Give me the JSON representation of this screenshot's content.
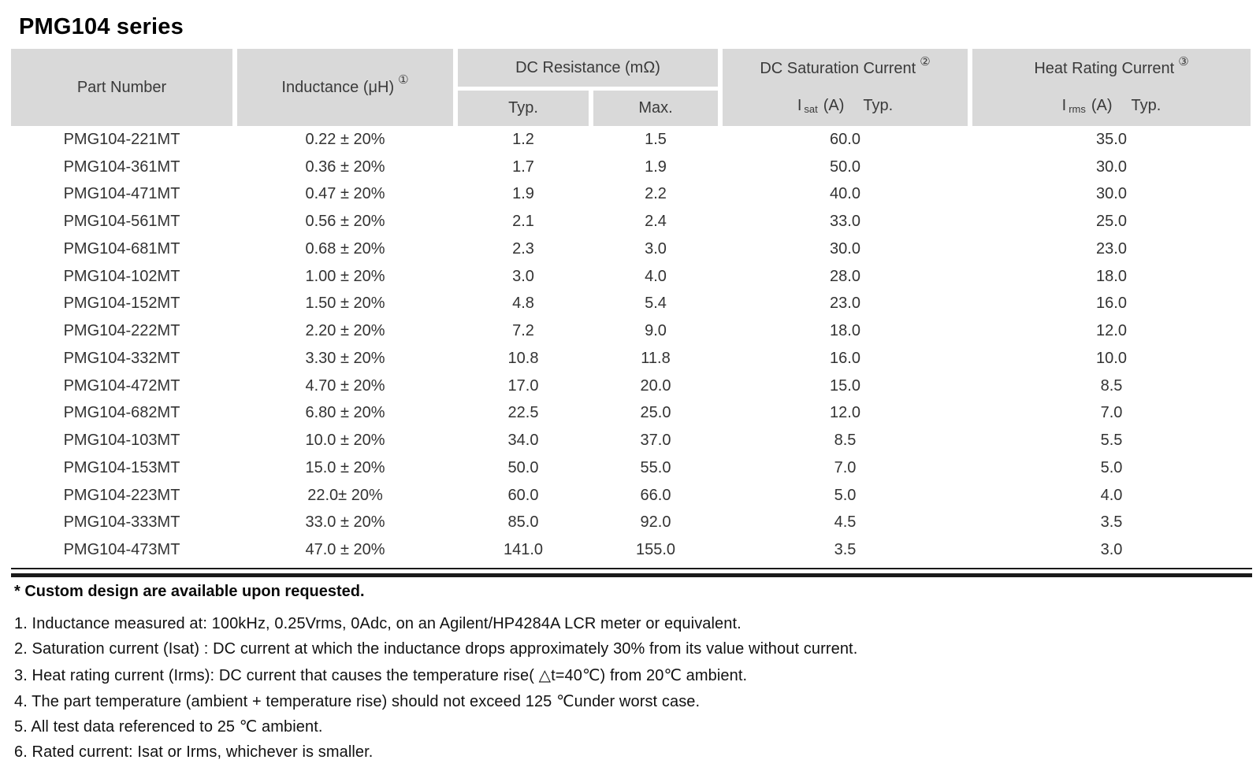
{
  "page_title": "PMG104 series",
  "colors": {
    "header_bg": "#d9d9d9",
    "rule": "#1a1a1a",
    "text": "#333333"
  },
  "table": {
    "header": {
      "part_number": "Part Number",
      "inductance": {
        "label": "Inductance (μH)",
        "sup": "①"
      },
      "dc_resistance": "DC Resistance (mΩ)",
      "typ": "Typ.",
      "max": "Max.",
      "dc_saturation": {
        "label": "DC Saturation Current",
        "sup": "②",
        "i": "I",
        "sub": "sat",
        "unit": "(A)",
        "typ": "Typ."
      },
      "heat_rating": {
        "label": "Heat Rating Current",
        "sup": "③",
        "i": "I",
        "sub": "rms",
        "unit": "(A)",
        "typ": "Typ."
      }
    },
    "rows": [
      {
        "part": "PMG104-221MT",
        "inductance": "0.22 ± 20%",
        "dcr_typ": "1.2",
        "dcr_max": "1.5",
        "isat": "60.0",
        "irms": "35.0"
      },
      {
        "part": "PMG104-361MT",
        "inductance": "0.36 ± 20%",
        "dcr_typ": "1.7",
        "dcr_max": "1.9",
        "isat": "50.0",
        "irms": "30.0"
      },
      {
        "part": "PMG104-471MT",
        "inductance": "0.47 ± 20%",
        "dcr_typ": "1.9",
        "dcr_max": "2.2",
        "isat": "40.0",
        "irms": "30.0"
      },
      {
        "part": "PMG104-561MT",
        "inductance": "0.56 ± 20%",
        "dcr_typ": "2.1",
        "dcr_max": "2.4",
        "isat": "33.0",
        "irms": "25.0"
      },
      {
        "part": "PMG104-681MT",
        "inductance": "0.68 ± 20%",
        "dcr_typ": "2.3",
        "dcr_max": "3.0",
        "isat": "30.0",
        "irms": "23.0"
      },
      {
        "part": "PMG104-102MT",
        "inductance": "1.00 ± 20%",
        "dcr_typ": "3.0",
        "dcr_max": "4.0",
        "isat": "28.0",
        "irms": "18.0"
      },
      {
        "part": "PMG104-152MT",
        "inductance": "1.50 ± 20%",
        "dcr_typ": "4.8",
        "dcr_max": "5.4",
        "isat": "23.0",
        "irms": "16.0"
      },
      {
        "part": "PMG104-222MT",
        "inductance": "2.20 ± 20%",
        "dcr_typ": "7.2",
        "dcr_max": "9.0",
        "isat": "18.0",
        "irms": "12.0"
      },
      {
        "part": "PMG104-332MT",
        "inductance": "3.30 ± 20%",
        "dcr_typ": "10.8",
        "dcr_max": "11.8",
        "isat": "16.0",
        "irms": "10.0"
      },
      {
        "part": "PMG104-472MT",
        "inductance": "4.70 ± 20%",
        "dcr_typ": "17.0",
        "dcr_max": "20.0",
        "isat": "15.0",
        "irms": "8.5"
      },
      {
        "part": "PMG104-682MT",
        "inductance": "6.80 ± 20%",
        "dcr_typ": "22.5",
        "dcr_max": "25.0",
        "isat": "12.0",
        "irms": "7.0"
      },
      {
        "part": "PMG104-103MT",
        "inductance": "10.0 ± 20%",
        "dcr_typ": "34.0",
        "dcr_max": "37.0",
        "isat": "8.5",
        "irms": "5.5"
      },
      {
        "part": "PMG104-153MT",
        "inductance": "15.0 ± 20%",
        "dcr_typ": "50.0",
        "dcr_max": "55.0",
        "isat": "7.0",
        "irms": "5.0"
      },
      {
        "part": "PMG104-223MT",
        "inductance": "22.0± 20%",
        "dcr_typ": "60.0",
        "dcr_max": "66.0",
        "isat": "5.0",
        "irms": "4.0"
      },
      {
        "part": "PMG104-333MT",
        "inductance": "33.0 ± 20%",
        "dcr_typ": "85.0",
        "dcr_max": "92.0",
        "isat": "4.5",
        "irms": "3.5"
      },
      {
        "part": "PMG104-473MT",
        "inductance": "47.0 ± 20%",
        "dcr_typ": "141.0",
        "dcr_max": "155.0",
        "isat": "3.5",
        "irms": "3.0"
      }
    ]
  },
  "notes": {
    "custom": "* Custom design are available upon requested.",
    "items": [
      "1. Inductance measured at: 100kHz, 0.25Vrms, 0Adc, on an Agilent/HP4284A LCR meter or equivalent.",
      "2. Saturation current (Isat) : DC current at which the inductance drops approximately 30% from its value without current.",
      "3. Heat rating current (Irms): DC current that causes the temperature rise( △t=40℃) from 20℃ ambient.",
      "4. The part temperature (ambient + temperature rise) should not exceed 125 ℃under worst case.",
      "5. All test data referenced to 25 ℃ ambient.",
      "6. Rated current: Isat or Irms, whichever is smaller."
    ]
  }
}
